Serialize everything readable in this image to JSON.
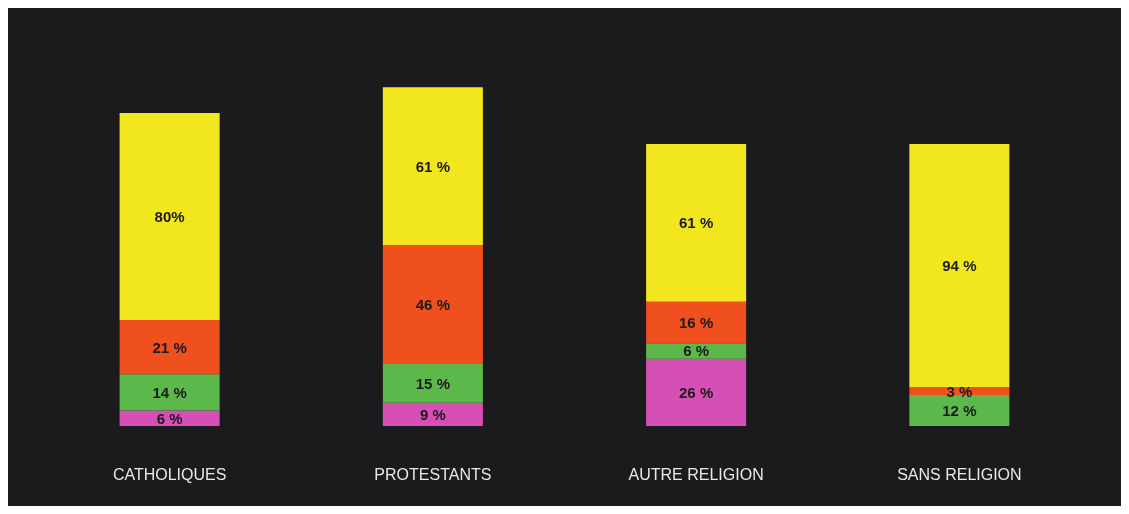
{
  "chart_data": {
    "type": "bar",
    "stacked": true,
    "categories": [
      "CATHOLIQUES",
      "PROTESTANTS",
      "AUTRE RELIGION",
      "SANS RELIGION"
    ],
    "series": [
      {
        "color": "#d64fb4",
        "values": [
          6,
          9,
          26,
          null
        ],
        "value_labels": [
          "6 %",
          "9 %",
          "26 %",
          null
        ]
      },
      {
        "color": "#5cb84a",
        "values": [
          14,
          15,
          6,
          12
        ],
        "value_labels": [
          "14 %",
          "15 %",
          "6 %",
          "12 %"
        ]
      },
      {
        "color": "#f0501e",
        "values": [
          21,
          46,
          16,
          3
        ],
        "value_labels": [
          "21 %",
          "46 %",
          "16 %",
          "3 %"
        ]
      },
      {
        "color": "#f2e61e",
        "values": [
          80,
          61,
          61,
          94
        ],
        "value_labels": [
          "80%",
          "61 %",
          "61 %",
          "94 %"
        ]
      }
    ]
  }
}
